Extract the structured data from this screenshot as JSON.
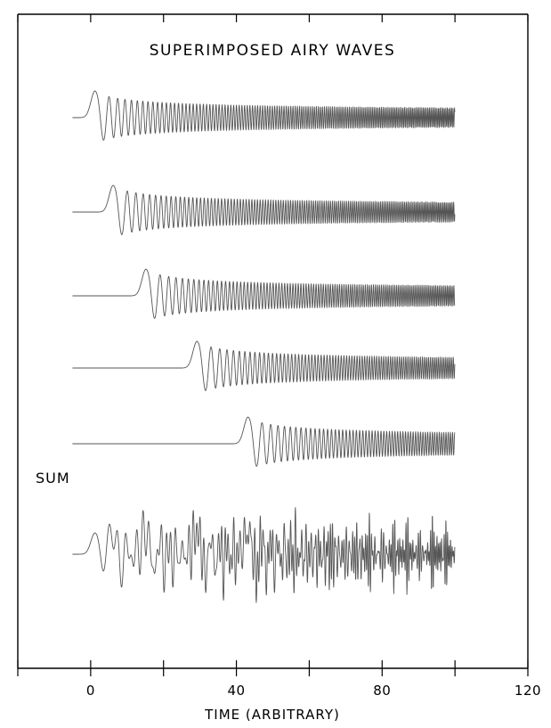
{
  "chart_data": {
    "type": "line",
    "title": "SUPERIMPOSED AIRY WAVES",
    "xlabel": "TIME (ARBITRARY)",
    "ylabel": "",
    "xlim": [
      -20,
      120
    ],
    "x_ticks": [
      -20,
      0,
      20,
      40,
      60,
      80,
      100,
      120
    ],
    "x_tick_labels": [
      "0",
      "40",
      "80",
      "120"
    ],
    "x_tick_label_values": [
      0,
      40,
      80,
      120
    ],
    "grid": false,
    "legend": "none",
    "trace_start": -5,
    "trace_end": 100,
    "series": [
      {
        "onset": 0
      },
      {
        "onset": 5
      },
      {
        "onset": 14
      },
      {
        "onset": 28
      },
      {
        "onset": 42
      },
      {
        "name": "SUM",
        "onset": 0,
        "is_sum": true
      }
    ],
    "colors": {
      "trace": "#555555",
      "frame": "#000000"
    }
  }
}
